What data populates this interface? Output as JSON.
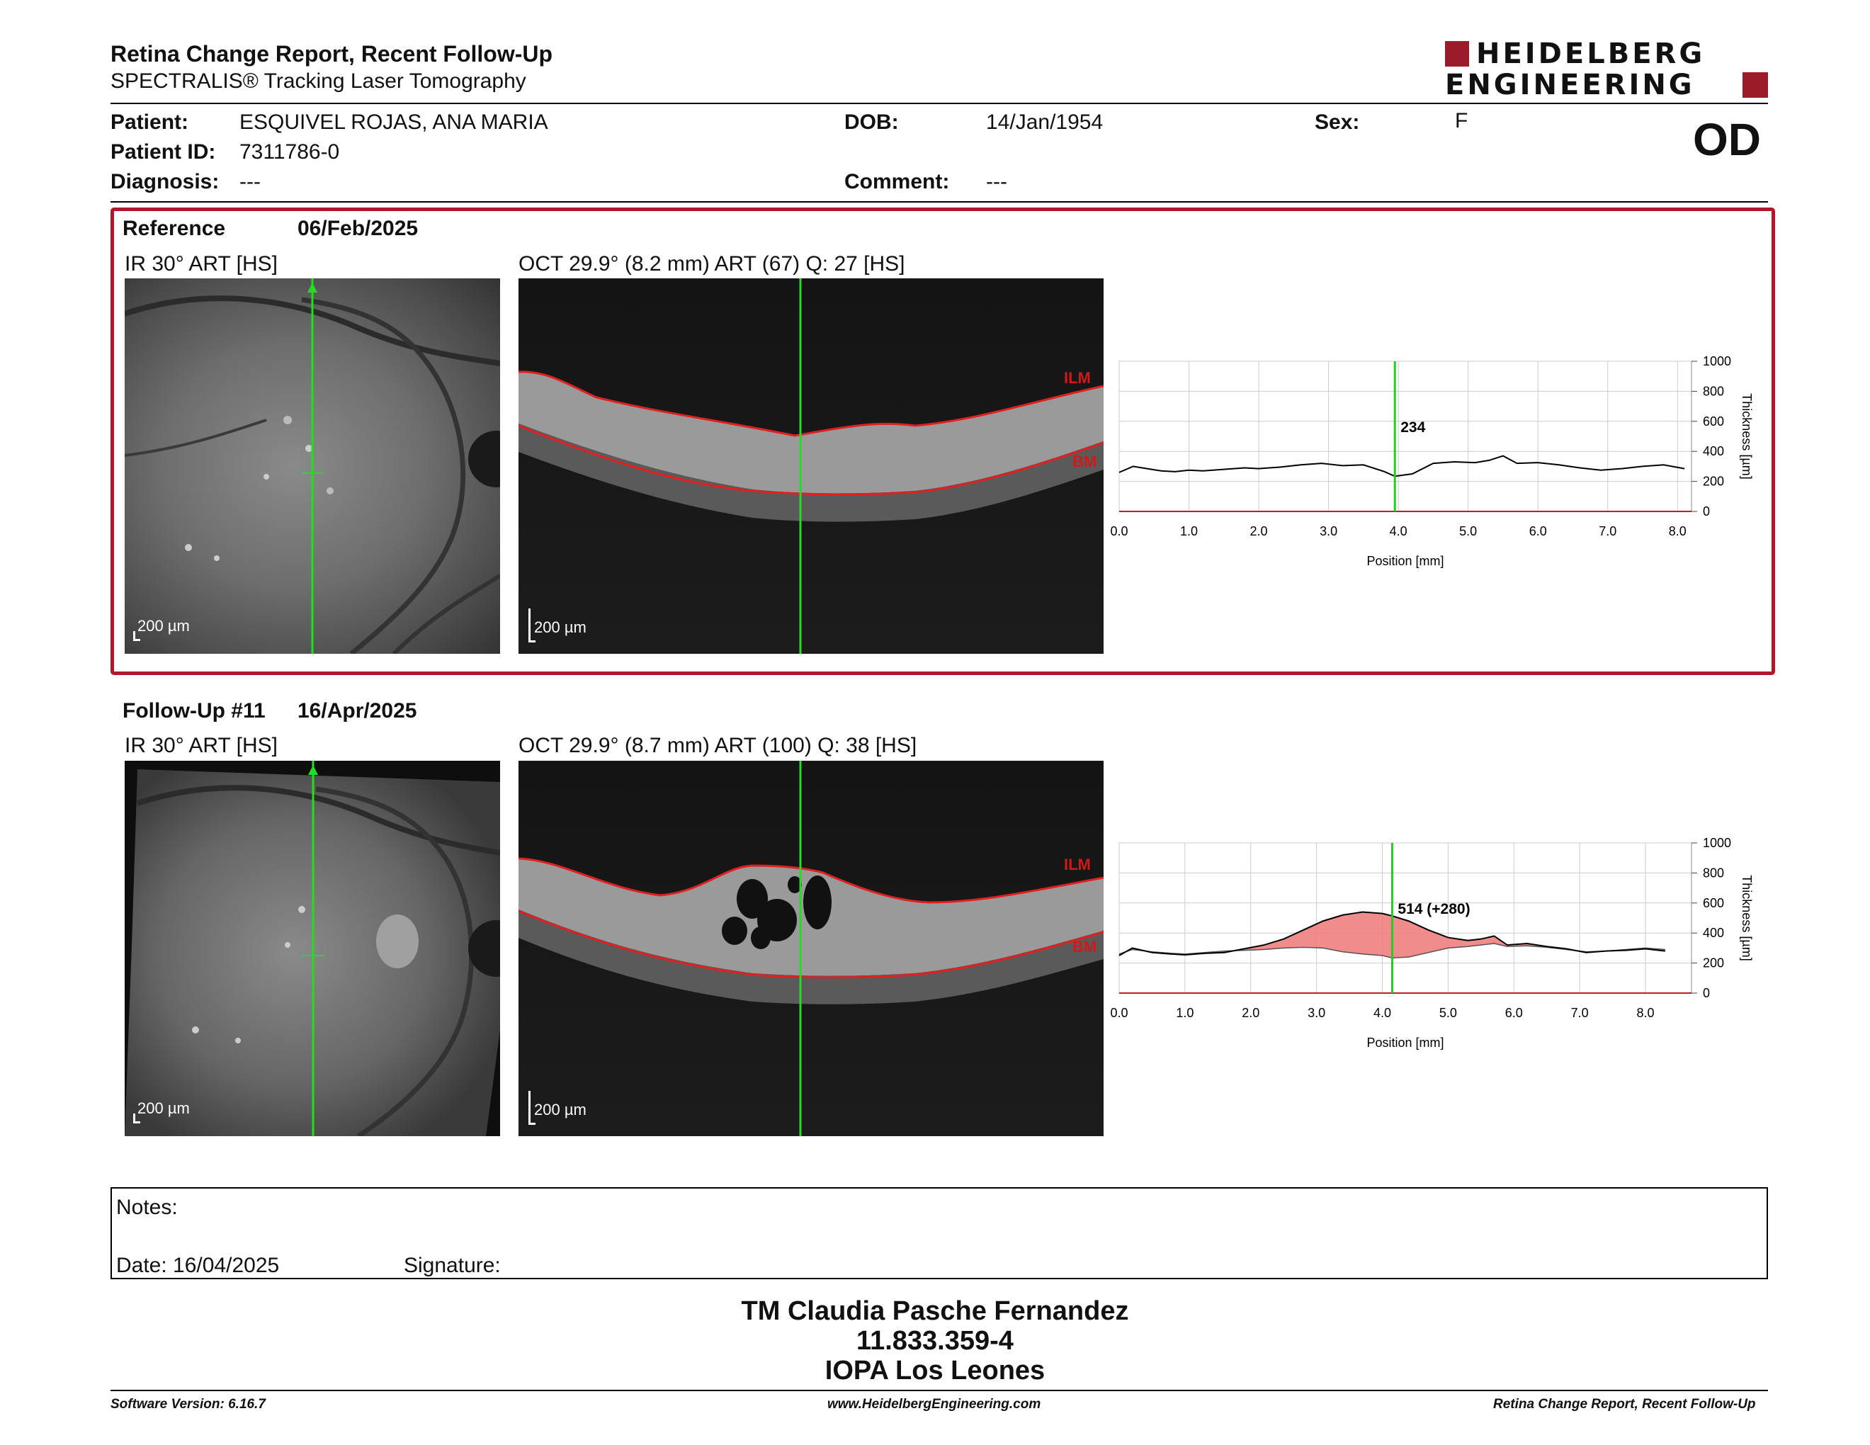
{
  "header": {
    "title": "Retina Change Report, Recent Follow-Up",
    "subtitle": "SPECTRALIS® Tracking Laser Tomography",
    "logo_line1": "HEIDELBERG",
    "logo_line2": "ENGINEERING"
  },
  "patient": {
    "patient_label": "Patient:",
    "patient_value": "ESQUIVEL ROJAS, ANA MARIA",
    "dob_label": "DOB:",
    "dob_value": "14/Jan/1954",
    "sex_label": "Sex:",
    "sex_value": "F",
    "id_label": "Patient ID:",
    "id_value": "7311786-0",
    "diagnosis_label": "Diagnosis:",
    "diagnosis_value": "---",
    "comment_label": "Comment:",
    "comment_value": "---",
    "eye": "OD"
  },
  "reference": {
    "label": "Reference",
    "date": "06/Feb/2025",
    "ir_caption": "IR 30° ART [HS]",
    "oct_caption": "OCT 29.9° (8.2 mm) ART (67) Q: 27 [HS]",
    "scale_label": "200 µm",
    "ilm_label": "ILM",
    "bm_label": "BM"
  },
  "followup": {
    "label": "Follow-Up #11",
    "date": "16/Apr/2025",
    "ir_caption": "IR 30° ART [HS]",
    "oct_caption": "OCT 29.9° (8.7 mm) ART (100) Q: 38 [HS]",
    "scale_label": "200 µm",
    "ilm_label": "ILM",
    "bm_label": "BM"
  },
  "chart_data": [
    {
      "type": "line",
      "xlabel": "Position [mm]",
      "ylabel": "Thickness [µm]",
      "xlim": [
        0,
        8.2
      ],
      "ylim": [
        0,
        1000
      ],
      "x_ticks": [
        "0.0",
        "1.0",
        "2.0",
        "3.0",
        "4.0",
        "5.0",
        "6.0",
        "7.0",
        "8.0"
      ],
      "y_ticks": [
        "0",
        "200",
        "400",
        "600",
        "800",
        "1000"
      ],
      "marker_x": 3.95,
      "marker_label": "234",
      "series": [
        {
          "color": "#000000",
          "x": [
            0.0,
            0.2,
            0.4,
            0.6,
            0.8,
            1.0,
            1.2,
            1.5,
            1.8,
            2.0,
            2.3,
            2.6,
            2.9,
            3.2,
            3.5,
            3.8,
            3.95,
            4.2,
            4.5,
            4.8,
            5.1,
            5.3,
            5.5,
            5.7,
            6.0,
            6.3,
            6.6,
            6.9,
            7.2,
            7.5,
            7.8,
            8.1
          ],
          "y": [
            260,
            300,
            285,
            270,
            265,
            275,
            270,
            280,
            290,
            285,
            295,
            310,
            320,
            305,
            310,
            265,
            234,
            250,
            320,
            330,
            325,
            340,
            370,
            320,
            325,
            310,
            290,
            275,
            285,
            300,
            310,
            285
          ]
        }
      ]
    },
    {
      "type": "area",
      "xlabel": "Position [mm]",
      "ylabel": "Thickness [µm]",
      "xlim": [
        0,
        8.7
      ],
      "ylim": [
        0,
        1000
      ],
      "x_ticks": [
        "0.0",
        "1.0",
        "2.0",
        "3.0",
        "4.0",
        "5.0",
        "6.0",
        "7.0",
        "8.0"
      ],
      "y_ticks": [
        "0",
        "200",
        "400",
        "600",
        "800",
        "1000"
      ],
      "marker_x": 4.15,
      "marker_label": "514 (+280)",
      "series": [
        {
          "name": "",
          "color": "#000000",
          "x": [
            0.0,
            0.2,
            0.5,
            0.8,
            1.0,
            1.3,
            1.6,
            1.9,
            2.2,
            2.5,
            2.8,
            3.1,
            3.4,
            3.7,
            4.0,
            4.15,
            4.4,
            4.7,
            5.0,
            5.3,
            5.5,
            5.7,
            5.9,
            6.2,
            6.5,
            6.8,
            7.1,
            7.4,
            7.7,
            8.0,
            8.3
          ],
          "y": [
            250,
            300,
            270,
            260,
            255,
            265,
            270,
            295,
            320,
            360,
            420,
            480,
            520,
            540,
            530,
            514,
            480,
            420,
            370,
            350,
            360,
            380,
            320,
            330,
            310,
            295,
            270,
            280,
            285,
            295,
            280
          ]
        },
        {
          "name": "",
          "color": "#d04040",
          "x": [
            0.0,
            0.2,
            0.5,
            0.8,
            1.0,
            1.3,
            1.6,
            1.9,
            2.2,
            2.5,
            2.8,
            3.1,
            3.4,
            3.7,
            4.0,
            4.15,
            4.4,
            4.7,
            5.0,
            5.3,
            5.5,
            5.7,
            5.9,
            6.2,
            6.5,
            6.8,
            7.1,
            7.4,
            7.7,
            8.0,
            8.3
          ],
          "y": [
            260,
            290,
            275,
            265,
            260,
            270,
            280,
            285,
            290,
            300,
            305,
            300,
            275,
            260,
            250,
            234,
            240,
            270,
            300,
            310,
            320,
            330,
            310,
            315,
            305,
            290,
            275,
            280,
            290,
            300,
            290
          ]
        }
      ]
    }
  ],
  "notes": {
    "notes_label": "Notes:",
    "date_label": "Date: 16/04/2025",
    "signature_label": "Signature:"
  },
  "footer": {
    "line1": "TM Claudia Pasche Fernandez",
    "line2": "11.833.359-4",
    "line3": "IOPA Los Leones",
    "software": "Software Version: 6.16.7",
    "website": "www.HeidelbergEngineering.com",
    "report_name": "Retina Change Report, Recent Follow-Up"
  }
}
